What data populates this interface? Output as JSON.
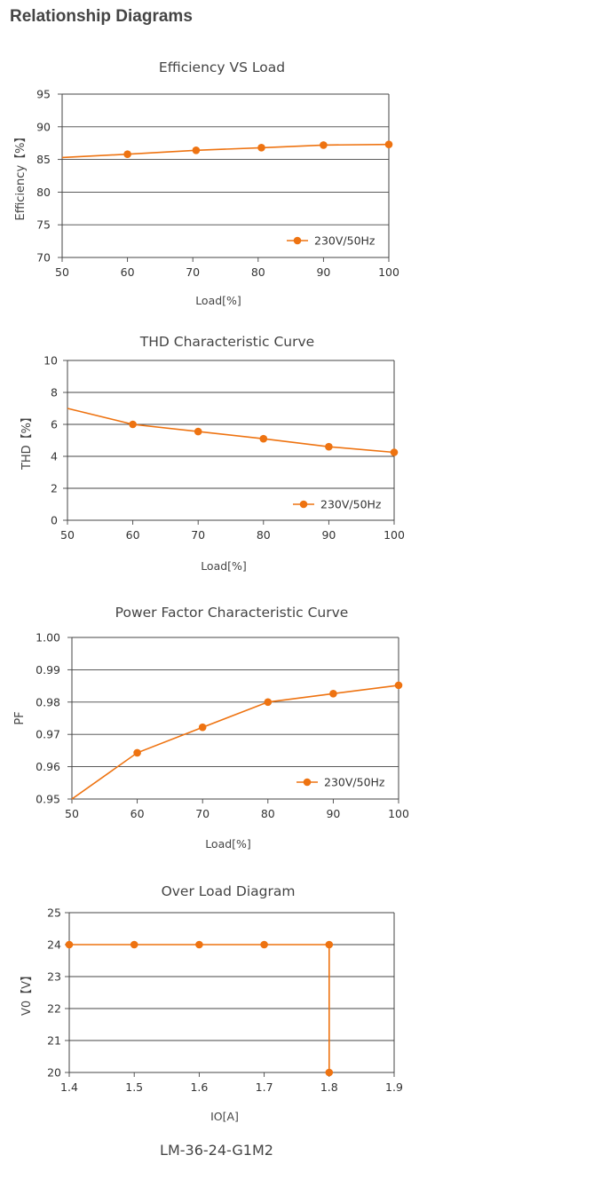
{
  "page": {
    "heading": "Relationship Diagrams",
    "footer": "LM-36-24-G1M2"
  },
  "colors": {
    "series": "#ee7311",
    "grid": "#444444",
    "text": "#444444"
  },
  "chart_data": [
    {
      "type": "line",
      "title": "Efficiency VS Load",
      "xlabel": "Load[%]",
      "ylabel": "Efficiency【%】",
      "xlim": [
        50,
        100
      ],
      "ylim": [
        70,
        95
      ],
      "xticks": [
        "50",
        "60",
        "70",
        "80",
        "90",
        "100"
      ],
      "yticks": [
        "70",
        "75",
        "80",
        "85",
        "90",
        "95"
      ],
      "grid": true,
      "legend_position": "bottom-right",
      "series": [
        {
          "name": "230V/50Hz",
          "start": [
            50,
            85.3
          ],
          "x": [
            60,
            70.5,
            80.5,
            90,
            100
          ],
          "y": [
            85.8,
            86.4,
            86.8,
            87.2,
            87.3
          ]
        }
      ]
    },
    {
      "type": "line",
      "title": "THD Characteristic Curve",
      "xlabel": "Load[%]",
      "ylabel": "THD【%】",
      "xlim": [
        50,
        100
      ],
      "ylim": [
        0,
        10
      ],
      "xticks": [
        "50",
        "60",
        "70",
        "80",
        "90",
        "100"
      ],
      "yticks": [
        "0",
        "2",
        "4",
        "6",
        "8",
        "10"
      ],
      "grid": true,
      "legend_position": "bottom-right",
      "series": [
        {
          "name": "230V/50Hz",
          "start": [
            50,
            7.0
          ],
          "x": [
            60,
            70,
            80,
            90,
            100
          ],
          "y": [
            6.0,
            5.55,
            5.1,
            4.6,
            4.25
          ]
        }
      ]
    },
    {
      "type": "line",
      "title": "Power Factor Characteristic Curve",
      "xlabel": "Load[%]",
      "ylabel": "PF",
      "xlim": [
        50,
        100
      ],
      "ylim": [
        0.95,
        1.0
      ],
      "xticks": [
        "50",
        "60",
        "70",
        "80",
        "90",
        "100"
      ],
      "yticks": [
        "0.95",
        "0.96",
        "0.97",
        "0.98",
        "0.99",
        "1.00"
      ],
      "grid": true,
      "legend_position": "bottom-right",
      "series": [
        {
          "name": "230V/50Hz",
          "start": [
            50,
            0.95
          ],
          "x": [
            60,
            70,
            80,
            90,
            100
          ],
          "y": [
            0.9643,
            0.9722,
            0.98,
            0.9826,
            0.9852
          ]
        }
      ]
    },
    {
      "type": "line",
      "title": "Over Load Diagram",
      "xlabel": "IO[A]",
      "ylabel": "V0【V】",
      "xlim": [
        1.4,
        1.9
      ],
      "ylim": [
        20,
        25
      ],
      "xticks": [
        "1.4",
        "1.5",
        "1.6",
        "1.7",
        "1.8",
        "1.9"
      ],
      "yticks": [
        "20",
        "21",
        "22",
        "23",
        "24",
        "25"
      ],
      "grid": true,
      "series": [
        {
          "x": [
            1.4,
            1.5,
            1.6,
            1.7,
            1.8,
            1.8
          ],
          "y": [
            24,
            24,
            24,
            24,
            24,
            20
          ]
        }
      ]
    }
  ]
}
